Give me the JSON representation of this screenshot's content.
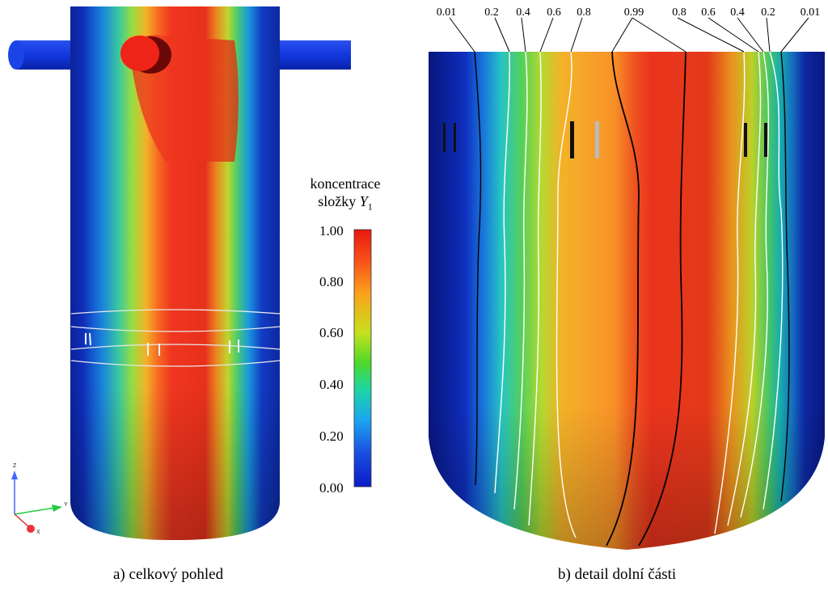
{
  "captions": {
    "left": "a) celkový pohled",
    "right": "b) detail dolní části"
  },
  "legend": {
    "title_line1": "koncentrace",
    "title_line2_text": "složky ",
    "title_symbol": "Y",
    "title_subscript": "1",
    "ticks": [
      "1.00",
      "0.80",
      "0.60",
      "0.40",
      "0.20",
      "0.00"
    ],
    "colors": [
      "#d7191c",
      "#fd6a1a",
      "#fdae1a",
      "#d7e019",
      "#61d61c",
      "#1cd6a5",
      "#1a9cfd",
      "#1a3cd7",
      "#0a22c8"
    ]
  },
  "contour_labels": [
    "0.01",
    "0.2",
    "0.4",
    "0.6",
    "0.8",
    "0.99",
    "0.8",
    "0.6",
    "0.4",
    "0.2",
    "0.01"
  ],
  "axes_triad": {
    "z": "Z",
    "y": "Y",
    "x": "X"
  }
}
